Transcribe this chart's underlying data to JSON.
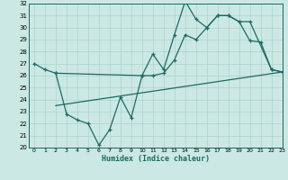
{
  "title": "",
  "xlabel": "Humidex (Indice chaleur)",
  "ylabel": "",
  "background_color": "#cce8e4",
  "line_color": "#1a6b63",
  "grid_color": "#aad4cc",
  "ylim": [
    20,
    32
  ],
  "xlim": [
    -0.5,
    23
  ],
  "yticks": [
    20,
    21,
    22,
    23,
    24,
    25,
    26,
    27,
    28,
    29,
    30,
    31,
    32
  ],
  "xticks": [
    0,
    1,
    2,
    3,
    4,
    5,
    6,
    7,
    8,
    9,
    10,
    11,
    12,
    13,
    14,
    15,
    16,
    17,
    18,
    19,
    20,
    21,
    22,
    23
  ],
  "line1_x": [
    0,
    1,
    2,
    10,
    11,
    12,
    13,
    14,
    15,
    16,
    17,
    18,
    19,
    20,
    22,
    23
  ],
  "line1_y": [
    27.0,
    26.5,
    26.2,
    26.0,
    26.0,
    26.2,
    27.3,
    29.4,
    29.0,
    30.0,
    31.0,
    31.0,
    30.5,
    30.5,
    26.5,
    26.3
  ],
  "line2_x": [
    2,
    3,
    4,
    5,
    6,
    7,
    8,
    9,
    10,
    11,
    12,
    13,
    14,
    15,
    16,
    17,
    18,
    19,
    20,
    21,
    22,
    23
  ],
  "line2_y": [
    26.2,
    22.8,
    22.3,
    22.0,
    20.2,
    21.5,
    24.2,
    22.5,
    26.0,
    27.8,
    26.5,
    29.4,
    32.2,
    30.7,
    30.0,
    31.0,
    31.0,
    30.5,
    28.9,
    28.8,
    26.5,
    26.3
  ],
  "line3_x": [
    2,
    23
  ],
  "line3_y": [
    23.5,
    26.3
  ]
}
